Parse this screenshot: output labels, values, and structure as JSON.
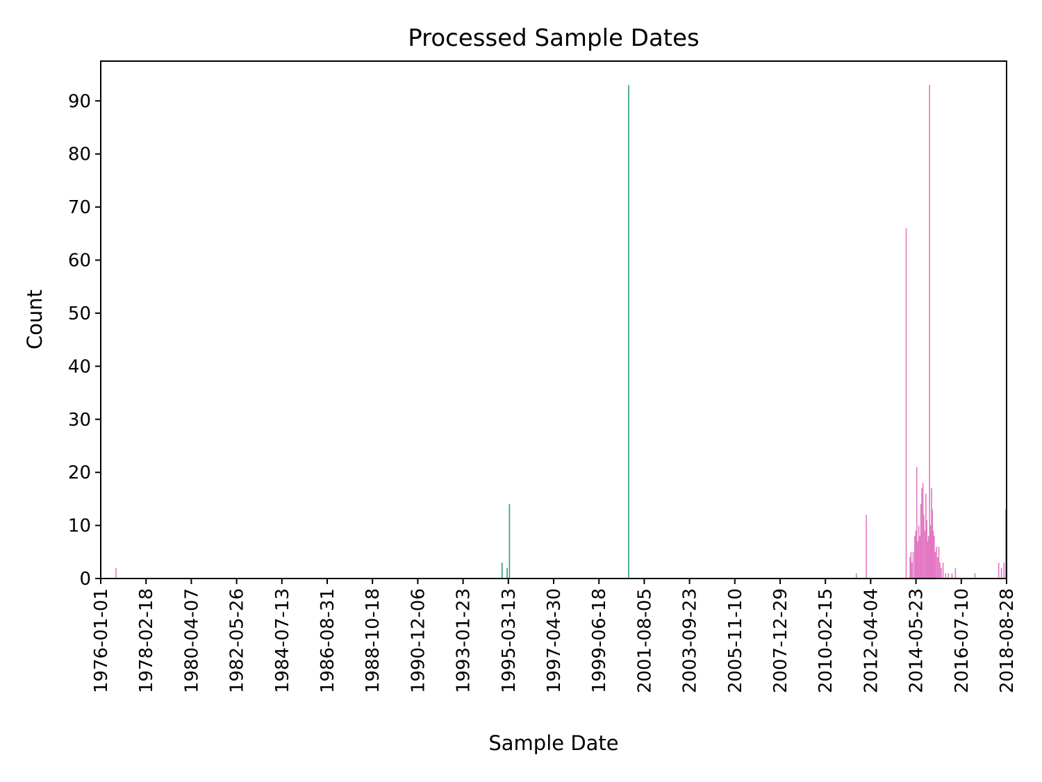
{
  "chart_data": {
    "type": "bar",
    "title": "Processed Sample Dates",
    "xlabel": "Sample Date",
    "ylabel": "Count",
    "xlim": [
      "1976-01-01",
      "2018-08-28"
    ],
    "ylim": [
      0,
      97.5
    ],
    "grid": false,
    "legend": "none",
    "xticks": [
      "1976-01-01",
      "1978-02-18",
      "1980-04-07",
      "1982-05-26",
      "1984-07-13",
      "1986-08-31",
      "1988-10-18",
      "1990-12-06",
      "1993-01-23",
      "1995-03-13",
      "1997-04-30",
      "1999-06-18",
      "2001-08-05",
      "2003-09-23",
      "2005-11-10",
      "2007-12-29",
      "2010-02-15",
      "2012-04-04",
      "2014-05-23",
      "2016-07-10",
      "2018-08-28"
    ],
    "yticks": [
      0,
      10,
      20,
      30,
      40,
      50,
      60,
      70,
      80,
      90
    ],
    "bars": [
      {
        "x": "1976-09-20",
        "y": 2,
        "color": "#e377c2"
      },
      {
        "x": "1994-11-25",
        "y": 3,
        "color": "#2a9d7e"
      },
      {
        "x": "1995-02-20",
        "y": 2,
        "color": "#2a9d7e"
      },
      {
        "x": "1995-04-01",
        "y": 14,
        "color": "#2a9d7e"
      },
      {
        "x": "2000-11-10",
        "y": 93,
        "color": "#2a9d7e"
      },
      {
        "x": "2011-08-01",
        "y": 1,
        "color": "#e377c2"
      },
      {
        "x": "2012-01-20",
        "y": 12,
        "color": "#e377c2"
      },
      {
        "x": "2013-12-05",
        "y": 66,
        "color": "#e377c2"
      },
      {
        "x": "2014-02-10",
        "y": 4,
        "color": "#e377c2"
      },
      {
        "x": "2014-02-25",
        "y": 5,
        "color": "#e377c2"
      },
      {
        "x": "2014-03-15",
        "y": 3,
        "color": "#e377c2"
      },
      {
        "x": "2014-04-05",
        "y": 5,
        "color": "#e377c2"
      },
      {
        "x": "2014-05-01",
        "y": 8,
        "color": "#e377c2"
      },
      {
        "x": "2014-05-20",
        "y": 9,
        "color": "#e377c2"
      },
      {
        "x": "2014-06-05",
        "y": 21,
        "color": "#e377c2"
      },
      {
        "x": "2014-06-25",
        "y": 7,
        "color": "#e377c2"
      },
      {
        "x": "2014-07-10",
        "y": 10,
        "color": "#e377c2"
      },
      {
        "x": "2014-07-30",
        "y": 8,
        "color": "#e377c2"
      },
      {
        "x": "2014-08-15",
        "y": 14,
        "color": "#e377c2"
      },
      {
        "x": "2014-09-01",
        "y": 17,
        "color": "#e377c2"
      },
      {
        "x": "2014-09-20",
        "y": 18,
        "color": "#e377c2"
      },
      {
        "x": "2014-10-05",
        "y": 12,
        "color": "#e377c2"
      },
      {
        "x": "2014-10-25",
        "y": 9,
        "color": "#e377c2"
      },
      {
        "x": "2014-11-10",
        "y": 16,
        "color": "#e377c2"
      },
      {
        "x": "2014-11-25",
        "y": 11,
        "color": "#e377c2"
      },
      {
        "x": "2014-12-10",
        "y": 7,
        "color": "#e377c2"
      },
      {
        "x": "2014-12-25",
        "y": 8,
        "color": "#e377c2"
      },
      {
        "x": "2015-01-12",
        "y": 93,
        "color": "#e377c2"
      },
      {
        "x": "2015-01-30",
        "y": 10,
        "color": "#e377c2"
      },
      {
        "x": "2015-02-15",
        "y": 17,
        "color": "#e377c2"
      },
      {
        "x": "2015-03-01",
        "y": 13,
        "color": "#e377c2"
      },
      {
        "x": "2015-03-15",
        "y": 9,
        "color": "#e377c2"
      },
      {
        "x": "2015-04-01",
        "y": 8,
        "color": "#e377c2"
      },
      {
        "x": "2015-04-20",
        "y": 5,
        "color": "#e377c2"
      },
      {
        "x": "2015-05-10",
        "y": 6,
        "color": "#e377c2"
      },
      {
        "x": "2015-05-30",
        "y": 4,
        "color": "#e377c2"
      },
      {
        "x": "2015-06-20",
        "y": 6,
        "color": "#e377c2"
      },
      {
        "x": "2015-07-10",
        "y": 3,
        "color": "#e377c2"
      },
      {
        "x": "2015-08-01",
        "y": 2,
        "color": "#e377c2"
      },
      {
        "x": "2015-09-01",
        "y": 3,
        "color": "#e377c2"
      },
      {
        "x": "2015-10-15",
        "y": 1,
        "color": "#e377c2"
      },
      {
        "x": "2015-12-01",
        "y": 1,
        "color": "#e377c2"
      },
      {
        "x": "2016-02-01",
        "y": 1,
        "color": "#e377c2"
      },
      {
        "x": "2016-04-01",
        "y": 2,
        "color": "#e377c2"
      },
      {
        "x": "2017-03-01",
        "y": 1,
        "color": "#e377c2"
      },
      {
        "x": "2018-04-15",
        "y": 3,
        "color": "#e377c2"
      },
      {
        "x": "2018-06-01",
        "y": 2,
        "color": "#e377c2"
      },
      {
        "x": "2018-07-15",
        "y": 3,
        "color": "#e377c2"
      },
      {
        "x": "2018-08-20",
        "y": 13,
        "color": "#444444"
      }
    ]
  }
}
